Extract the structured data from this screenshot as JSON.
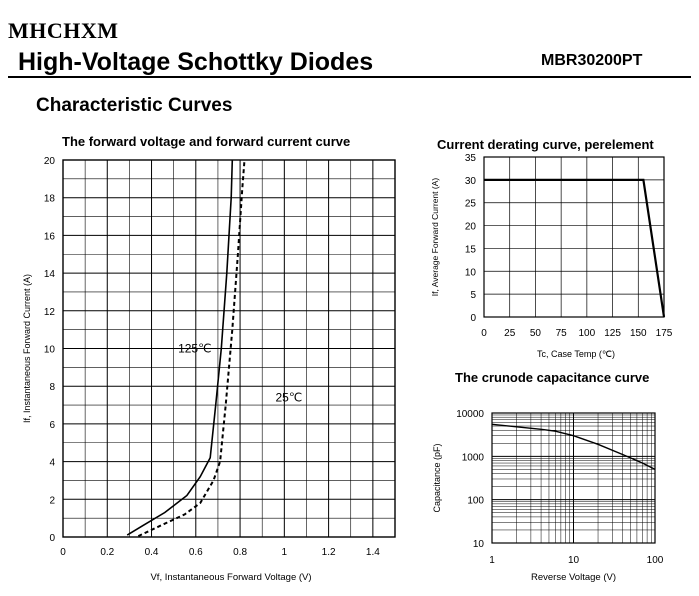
{
  "header": {
    "brand": "MHCHXM",
    "title": "High-Voltage Schottky Diodes",
    "part_number": "MBR30200PT",
    "section_title": "Characteristic Curves"
  },
  "chart_data": [
    {
      "id": "forward",
      "type": "line",
      "title": "The forward voltage and forward current curve",
      "xlabel": "Vf, Instantaneous Forward Voltage (V)",
      "ylabel": "If, Instantaneous Forward Current (A)",
      "xlim": [
        0,
        1.5
      ],
      "ylim": [
        0,
        20
      ],
      "xticks": [
        0,
        0.2,
        0.4,
        0.6,
        0.8,
        1.0,
        1.2,
        1.4
      ],
      "xtick_labels": [
        "0",
        "0.2",
        "0.4",
        "0.6",
        "0.8",
        "1",
        "1.2",
        "1.4"
      ],
      "yticks": [
        0,
        2,
        4,
        6,
        8,
        10,
        12,
        14,
        16,
        18,
        20
      ],
      "grid": true,
      "series": [
        {
          "name": "125℃",
          "style": "solid",
          "x": [
            0.29,
            0.36,
            0.46,
            0.56,
            0.62,
            0.665,
            0.69,
            0.715,
            0.74,
            0.76,
            0.765
          ],
          "y": [
            0.1,
            0.6,
            1.3,
            2.2,
            3.2,
            4.2,
            7.0,
            10.0,
            14.0,
            18.0,
            20.0
          ]
        },
        {
          "name": "25℃",
          "style": "dashed",
          "x": [
            0.34,
            0.44,
            0.55,
            0.62,
            0.68,
            0.71,
            0.735,
            0.765,
            0.79,
            0.81,
            0.82
          ],
          "y": [
            0.05,
            0.6,
            1.2,
            1.8,
            3.0,
            4.0,
            7.0,
            11.0,
            15.0,
            18.5,
            20.0
          ]
        }
      ],
      "annotations": [
        {
          "text": "125℃",
          "x": 0.52,
          "y": 9.8
        },
        {
          "text": "25℃",
          "x": 0.96,
          "y": 7.2
        }
      ]
    },
    {
      "id": "derating",
      "type": "line",
      "title": "Current derating curve, perelement",
      "xlabel": "Tc, Case Temp (℃)",
      "ylabel": "If, Average Forward Current (A)",
      "xlim": [
        0,
        175
      ],
      "ylim": [
        0,
        35
      ],
      "xticks": [
        0,
        25,
        50,
        75,
        100,
        125,
        150,
        175
      ],
      "yticks": [
        0,
        5,
        10,
        15,
        20,
        25,
        30,
        35
      ],
      "grid": true,
      "series": [
        {
          "x": [
            0,
            155,
            175
          ],
          "y": [
            30,
            30,
            0
          ]
        }
      ]
    },
    {
      "id": "capacitance",
      "type": "line",
      "title": "The crunode capacitance curve",
      "xlabel": "Reverse Voltage (V)",
      "ylabel": "Capacitance (pF)",
      "xscale": "log",
      "yscale": "log",
      "xlim": [
        1,
        100
      ],
      "ylim": [
        10,
        10000
      ],
      "xticks": [
        1,
        10,
        100
      ],
      "yticks": [
        10,
        100,
        1000,
        10000
      ],
      "grid": true,
      "series": [
        {
          "x": [
            1,
            2,
            4,
            6,
            10,
            20,
            40,
            70,
            100
          ],
          "y": [
            5500,
            4800,
            4200,
            3800,
            3000,
            1900,
            1100,
            700,
            500
          ]
        }
      ]
    }
  ]
}
